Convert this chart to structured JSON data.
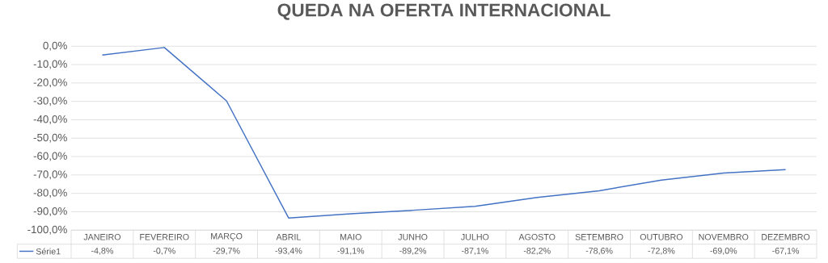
{
  "chart_data": {
    "type": "line",
    "title": "QUEDA NA OFERTA INTERNACIONAL",
    "categories": [
      "JANEIRO",
      "FEVEREIRO",
      "MARÇO",
      "ABRIL",
      "MAIO",
      "JUNHO",
      "JULHO",
      "AGOSTO",
      "SETEMBRO",
      "OUTUBRO",
      "NOVEMBRO",
      "DEZEMBRO"
    ],
    "series": [
      {
        "name": "Série1",
        "color": "#4472c4",
        "values": [
          -4.8,
          -0.7,
          -29.7,
          -93.4,
          -91.1,
          -89.2,
          -87.1,
          -82.2,
          -78.6,
          -72.8,
          -69.0,
          -67.1
        ],
        "value_labels": [
          "-4,8%",
          "-0,7%",
          "-29,7%",
          "-93,4%",
          "-91,1%",
          "-89,2%",
          "-87,1%",
          "-82,2%",
          "-78,6%",
          "-72,8%",
          "-69,0%",
          "-67,1%"
        ]
      }
    ],
    "ylim": [
      -100,
      0
    ],
    "yticks": [
      {
        "value": 0,
        "label": "0,0%"
      },
      {
        "value": -10,
        "label": "-10,0%"
      },
      {
        "value": -20,
        "label": "-20,0%"
      },
      {
        "value": -30,
        "label": "-30,0%"
      },
      {
        "value": -40,
        "label": "-40,0%"
      },
      {
        "value": -50,
        "label": "-50,0%"
      },
      {
        "value": -60,
        "label": "-60,0%"
      },
      {
        "value": -70,
        "label": "-70,0%"
      },
      {
        "value": -80,
        "label": "-80,0%"
      },
      {
        "value": -90,
        "label": "-90,0%"
      },
      {
        "value": -100,
        "label": "-100,0%"
      }
    ],
    "grid": "y",
    "legend": "bottom left",
    "marker": "none",
    "line_style": "solid"
  }
}
